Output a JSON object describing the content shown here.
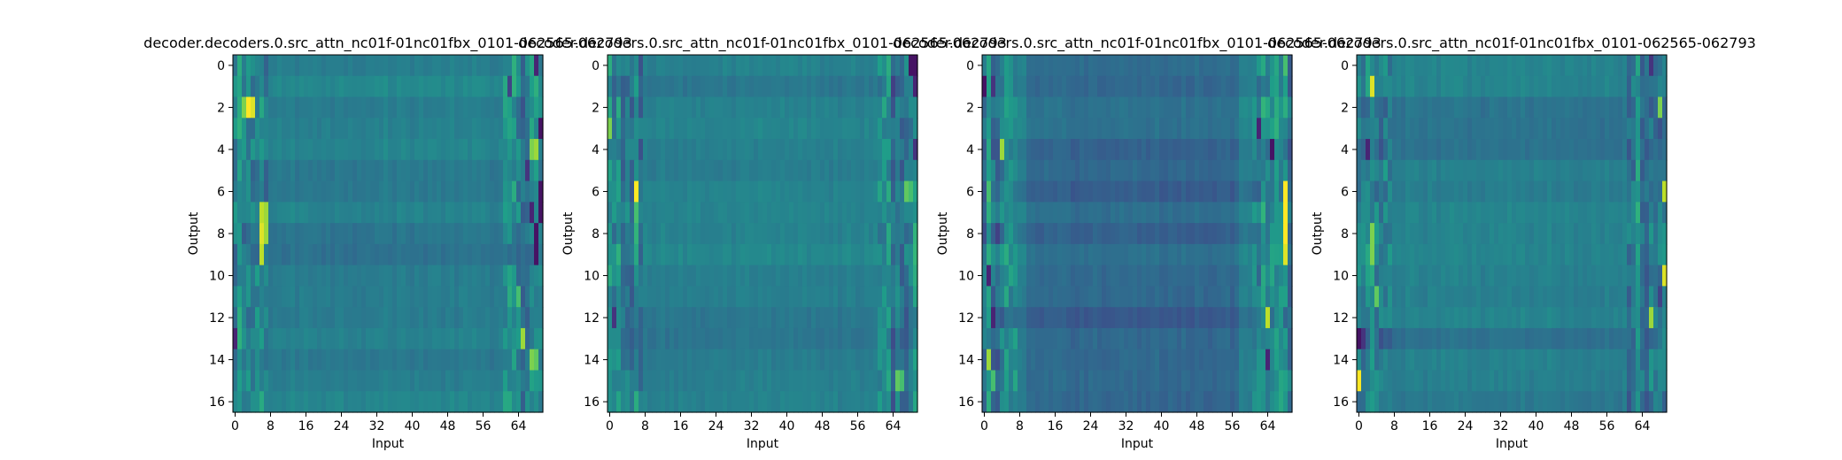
{
  "chart_data": [
    {
      "type": "heatmap",
      "title": "decoder.decoders.0.src_attn_nc01f-01nc01fbx_0101-062565-062793",
      "xlabel": "Input",
      "ylabel": "Output",
      "x_ticks": [
        "0",
        "8",
        "16",
        "24",
        "32",
        "40",
        "48",
        "56",
        "64"
      ],
      "y_ticks": [
        "0",
        "2",
        "4",
        "6",
        "8",
        "10",
        "12",
        "14",
        "16"
      ],
      "n_rows": 17,
      "n_cols": 70,
      "colormap": "viridis",
      "hot_cells": [
        [
          2,
          3,
          1.0
        ],
        [
          2,
          4,
          0.95
        ],
        [
          2,
          2,
          0.8
        ],
        [
          7,
          6,
          0.9
        ],
        [
          8,
          6,
          0.95
        ],
        [
          9,
          6,
          0.9
        ],
        [
          7,
          7,
          0.85
        ],
        [
          8,
          7,
          0.85
        ],
        [
          4,
          67,
          0.8
        ],
        [
          4,
          68,
          0.85
        ],
        [
          13,
          65,
          0.85
        ],
        [
          14,
          67,
          0.8
        ],
        [
          14,
          68,
          0.75
        ],
        [
          11,
          64,
          0.7
        ]
      ],
      "cold_cells": [
        [
          0,
          68,
          0.1
        ],
        [
          3,
          69,
          0.05
        ],
        [
          6,
          69,
          0.05
        ],
        [
          7,
          69,
          0.05
        ],
        [
          8,
          68,
          0.05
        ],
        [
          9,
          68,
          0.05
        ],
        [
          7,
          67,
          0.1
        ],
        [
          13,
          0,
          0.1
        ],
        [
          5,
          66,
          0.15
        ],
        [
          1,
          62,
          0.2
        ]
      ]
    },
    {
      "type": "heatmap",
      "title": "decoder.decoders.0.src_attn_nc01f-01nc01fbx_0101-062565-062793",
      "xlabel": "Input",
      "ylabel": "Output",
      "x_ticks": [
        "0",
        "8",
        "16",
        "24",
        "32",
        "40",
        "48",
        "56",
        "64"
      ],
      "y_ticks": [
        "0",
        "2",
        "4",
        "6",
        "8",
        "10",
        "12",
        "14",
        "16"
      ],
      "n_rows": 17,
      "n_cols": 70,
      "colormap": "viridis",
      "hot_cells": [
        [
          6,
          6,
          1.0
        ],
        [
          7,
          6,
          0.7
        ],
        [
          8,
          6,
          0.65
        ],
        [
          9,
          6,
          0.6
        ],
        [
          3,
          0,
          0.8
        ],
        [
          6,
          67,
          0.75
        ],
        [
          6,
          68,
          0.7
        ],
        [
          15,
          65,
          0.75
        ],
        [
          15,
          66,
          0.7
        ]
      ],
      "cold_cells": [
        [
          0,
          68,
          0.05
        ],
        [
          0,
          69,
          0.05
        ],
        [
          1,
          69,
          0.1
        ],
        [
          12,
          1,
          0.15
        ],
        [
          4,
          69,
          0.15
        ]
      ]
    },
    {
      "type": "heatmap",
      "title": "decoder.decoders.0.src_attn_nc01f-01nc01fbx_0101-062565-062793",
      "xlabel": "Input",
      "ylabel": "Output",
      "x_ticks": [
        "0",
        "8",
        "16",
        "24",
        "32",
        "40",
        "48",
        "56",
        "64"
      ],
      "y_ticks": [
        "0",
        "2",
        "4",
        "6",
        "8",
        "10",
        "12",
        "14",
        "16"
      ],
      "n_rows": 17,
      "n_cols": 70,
      "colormap": "viridis",
      "hot_cells": [
        [
          6,
          68,
          1.0
        ],
        [
          7,
          68,
          1.0
        ],
        [
          8,
          68,
          1.0
        ],
        [
          9,
          68,
          0.95
        ],
        [
          12,
          64,
          0.9
        ],
        [
          14,
          1,
          0.85
        ],
        [
          4,
          4,
          0.85
        ],
        [
          6,
          1,
          0.7
        ],
        [
          0,
          68,
          0.7
        ],
        [
          15,
          2,
          0.7
        ]
      ],
      "cold_cells": [
        [
          1,
          0,
          0.05
        ],
        [
          4,
          65,
          0.05
        ],
        [
          3,
          62,
          0.1
        ],
        [
          14,
          64,
          0.1
        ],
        [
          12,
          2,
          0.1
        ],
        [
          10,
          1,
          0.1
        ],
        [
          1,
          2,
          0.15
        ]
      ]
    },
    {
      "type": "heatmap",
      "title": "decoder.decoders.0.src_attn_nc01f-01nc01fbx_0101-062565-062793",
      "xlabel": "Input",
      "ylabel": "Output",
      "x_ticks": [
        "0",
        "8",
        "16",
        "24",
        "32",
        "40",
        "48",
        "56",
        "64"
      ],
      "y_ticks": [
        "0",
        "2",
        "4",
        "6",
        "8",
        "10",
        "12",
        "14",
        "16"
      ],
      "n_rows": 17,
      "n_cols": 70,
      "colormap": "viridis",
      "hot_cells": [
        [
          1,
          3,
          0.95
        ],
        [
          15,
          0,
          1.0
        ],
        [
          10,
          69,
          0.95
        ],
        [
          6,
          69,
          0.9
        ],
        [
          2,
          68,
          0.8
        ],
        [
          12,
          66,
          0.85
        ],
        [
          9,
          3,
          0.8
        ],
        [
          8,
          3,
          0.8
        ],
        [
          11,
          4,
          0.75
        ]
      ],
      "cold_cells": [
        [
          13,
          0,
          0.05
        ],
        [
          13,
          1,
          0.15
        ],
        [
          4,
          2,
          0.1
        ],
        [
          0,
          66,
          0.15
        ],
        [
          11,
          68,
          0.2
        ]
      ]
    }
  ]
}
